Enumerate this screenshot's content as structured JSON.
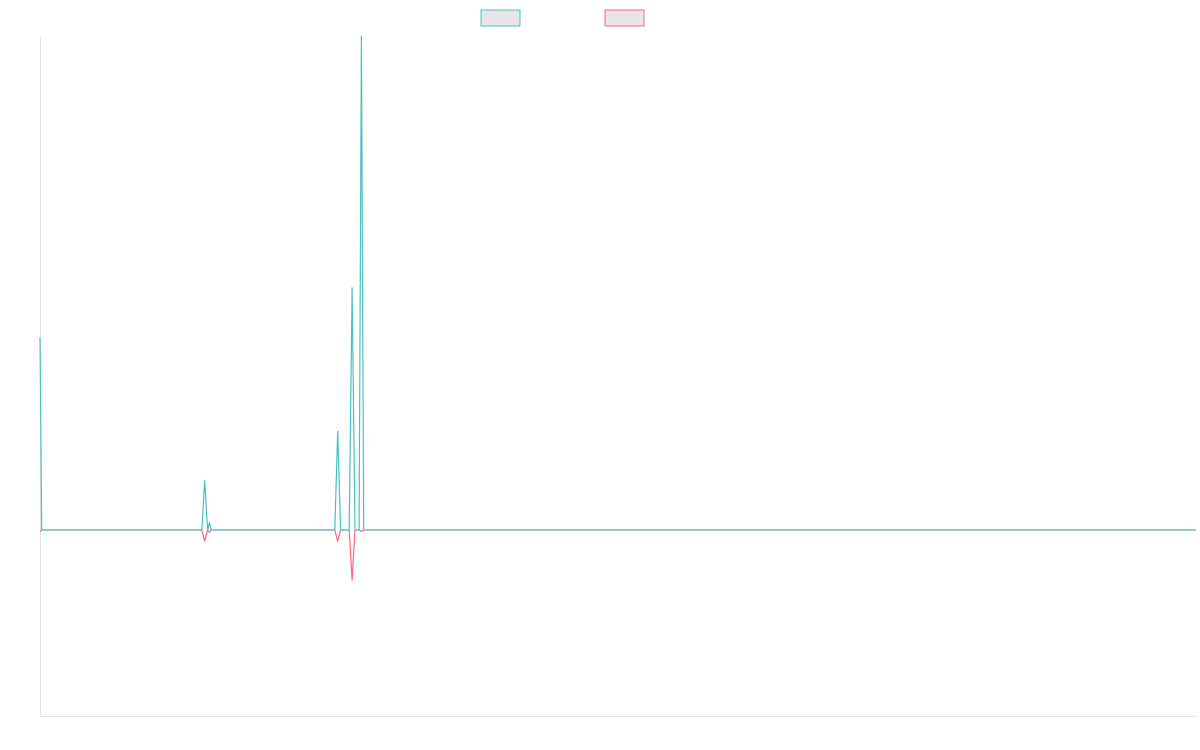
{
  "colors": {
    "series1": "#4bc0c0",
    "series2": "#ff6384",
    "legend_fill": "#e6e6e6",
    "axis": "#e3e3e3"
  },
  "chart_data": {
    "type": "line",
    "legend_position": "top-center",
    "grid": false,
    "x_range": [
      0,
      200
    ],
    "y_range": [
      -100,
      100
    ],
    "series": [
      {
        "color": "#4bc0c0",
        "points": [
          [
            0,
            39
          ],
          [
            0.3,
            0
          ],
          [
            28,
            0
          ],
          [
            28.5,
            10
          ],
          [
            29,
            0
          ],
          [
            29.3,
            1.5
          ],
          [
            29.6,
            0
          ],
          [
            51,
            0
          ],
          [
            51.5,
            20
          ],
          [
            52,
            0
          ],
          [
            53.5,
            0
          ],
          [
            54,
            49
          ],
          [
            54.5,
            0
          ],
          [
            55.2,
            0
          ],
          [
            55.6,
            100
          ],
          [
            56,
            0
          ],
          [
            200,
            0
          ]
        ]
      },
      {
        "color": "#ff6384",
        "points": [
          [
            0,
            -1
          ],
          [
            0.3,
            0
          ],
          [
            28,
            0
          ],
          [
            28.5,
            -6
          ],
          [
            29,
            0
          ],
          [
            29.3,
            -1.2
          ],
          [
            29.6,
            0
          ],
          [
            51,
            0
          ],
          [
            51.5,
            -6
          ],
          [
            52,
            0
          ],
          [
            53.5,
            0
          ],
          [
            54,
            -27
          ],
          [
            54.5,
            0
          ],
          [
            55.2,
            0
          ],
          [
            55.6,
            -0.8
          ],
          [
            56,
            0
          ],
          [
            200,
            0
          ]
        ]
      }
    ]
  }
}
